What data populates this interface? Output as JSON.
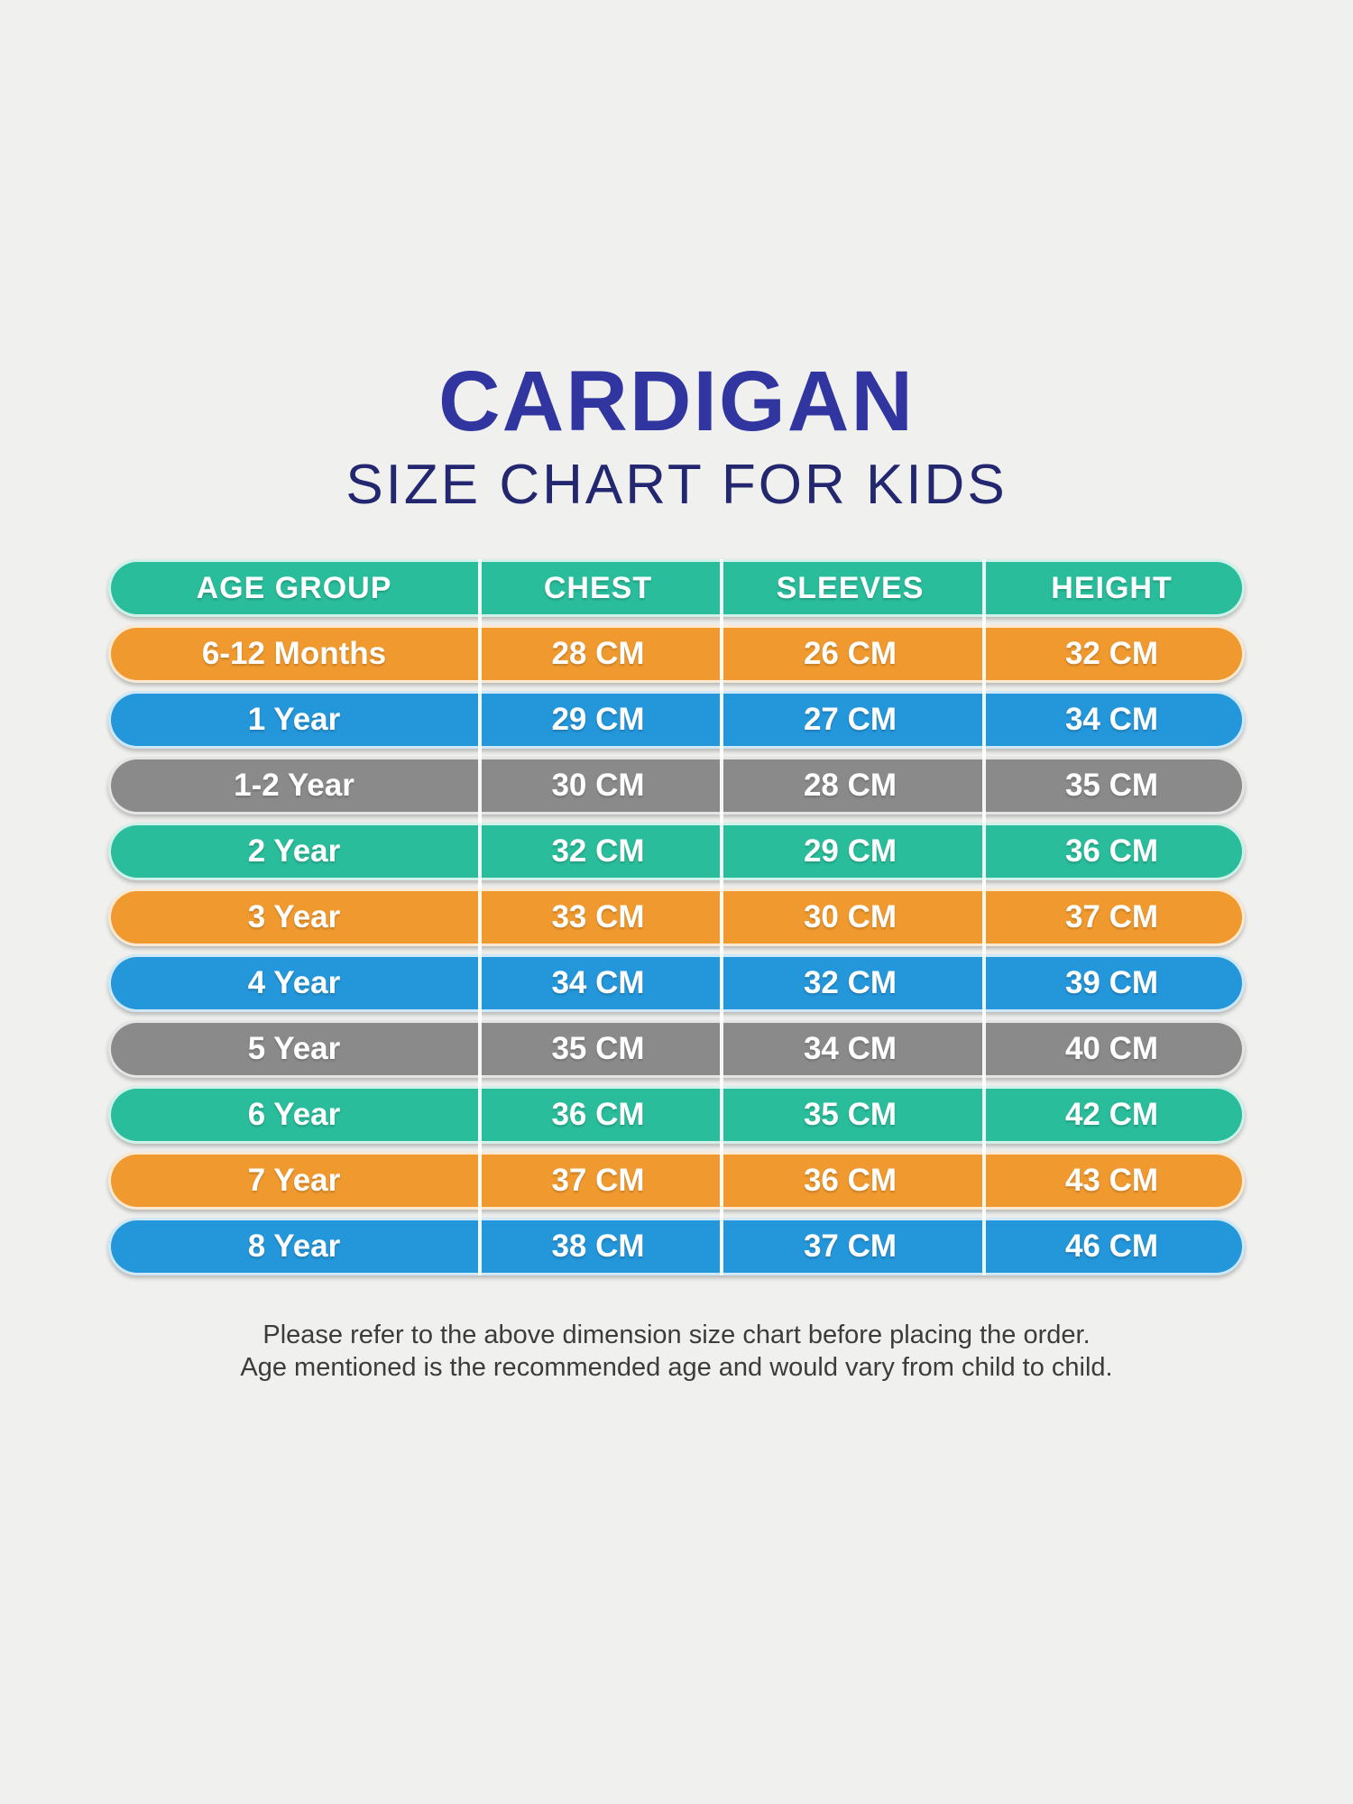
{
  "colors": {
    "page_bg": "#f0f0ee",
    "title": "#3035a0",
    "subtitle": "#23276f",
    "header_row": "#29bd9b",
    "orange": "#f0992e",
    "blue": "#2496da",
    "gray": "#8a8a8a",
    "teal": "#29bd9b",
    "row_text": "#ffffff",
    "footer_text": "#3c3c3c"
  },
  "header": {
    "title": "CARDIGAN",
    "subtitle": "SIZE CHART FOR KIDS"
  },
  "table": {
    "columns": [
      "AGE GROUP",
      "CHEST",
      "SLEEVES",
      "HEIGHT"
    ],
    "rows": [
      {
        "age_group": "6-12 Months",
        "chest": "28 CM",
        "sleeves": "26 CM",
        "height": "32 CM",
        "color": "#f0992e"
      },
      {
        "age_group": "1 Year",
        "chest": "29 CM",
        "sleeves": "27 CM",
        "height": "34 CM",
        "color": "#2496da"
      },
      {
        "age_group": "1-2 Year",
        "chest": "30 CM",
        "sleeves": "28 CM",
        "height": "35 CM",
        "color": "#8a8a8a"
      },
      {
        "age_group": "2 Year",
        "chest": "32 CM",
        "sleeves": "29 CM",
        "height": "36 CM",
        "color": "#29bd9b"
      },
      {
        "age_group": "3 Year",
        "chest": "33 CM",
        "sleeves": "30 CM",
        "height": "37 CM",
        "color": "#f0992e"
      },
      {
        "age_group": "4 Year",
        "chest": "34 CM",
        "sleeves": "32 CM",
        "height": "39 CM",
        "color": "#2496da"
      },
      {
        "age_group": "5 Year",
        "chest": "35 CM",
        "sleeves": "34 CM",
        "height": "40 CM",
        "color": "#8a8a8a"
      },
      {
        "age_group": "6 Year",
        "chest": "36 CM",
        "sleeves": "35 CM",
        "height": "42 CM",
        "color": "#29bd9b"
      },
      {
        "age_group": "7 Year",
        "chest": "37 CM",
        "sleeves": "36 CM",
        "height": "43 CM",
        "color": "#f0992e"
      },
      {
        "age_group": "8 Year",
        "chest": "38 CM",
        "sleeves": "37 CM",
        "height": "46 CM",
        "color": "#2496da"
      }
    ]
  },
  "footer": {
    "line1": "Please refer to the above dimension size chart before placing the order.",
    "line2": "Age mentioned is the recommended age and would vary from child to child."
  },
  "chart_data": {
    "type": "table",
    "title": "CARDIGAN SIZE CHART FOR KIDS",
    "columns": [
      "AGE GROUP",
      "CHEST",
      "SLEEVES",
      "HEIGHT"
    ],
    "rows": [
      [
        "6-12 Months",
        "28 CM",
        "26 CM",
        "32 CM"
      ],
      [
        "1 Year",
        "29 CM",
        "27 CM",
        "34 CM"
      ],
      [
        "1-2 Year",
        "30 CM",
        "28 CM",
        "35 CM"
      ],
      [
        "2 Year",
        "32 CM",
        "29 CM",
        "36 CM"
      ],
      [
        "3 Year",
        "33 CM",
        "30 CM",
        "37 CM"
      ],
      [
        "4 Year",
        "34 CM",
        "32 CM",
        "39 CM"
      ],
      [
        "5 Year",
        "35 CM",
        "34 CM",
        "40 CM"
      ],
      [
        "6 Year",
        "36 CM",
        "35 CM",
        "42 CM"
      ],
      [
        "7 Year",
        "37 CM",
        "36 CM",
        "43 CM"
      ],
      [
        "8 Year",
        "38 CM",
        "37 CM",
        "46 CM"
      ]
    ],
    "units": "CM",
    "row_color_cycle": [
      "#f0992e",
      "#2496da",
      "#8a8a8a",
      "#29bd9b"
    ]
  }
}
